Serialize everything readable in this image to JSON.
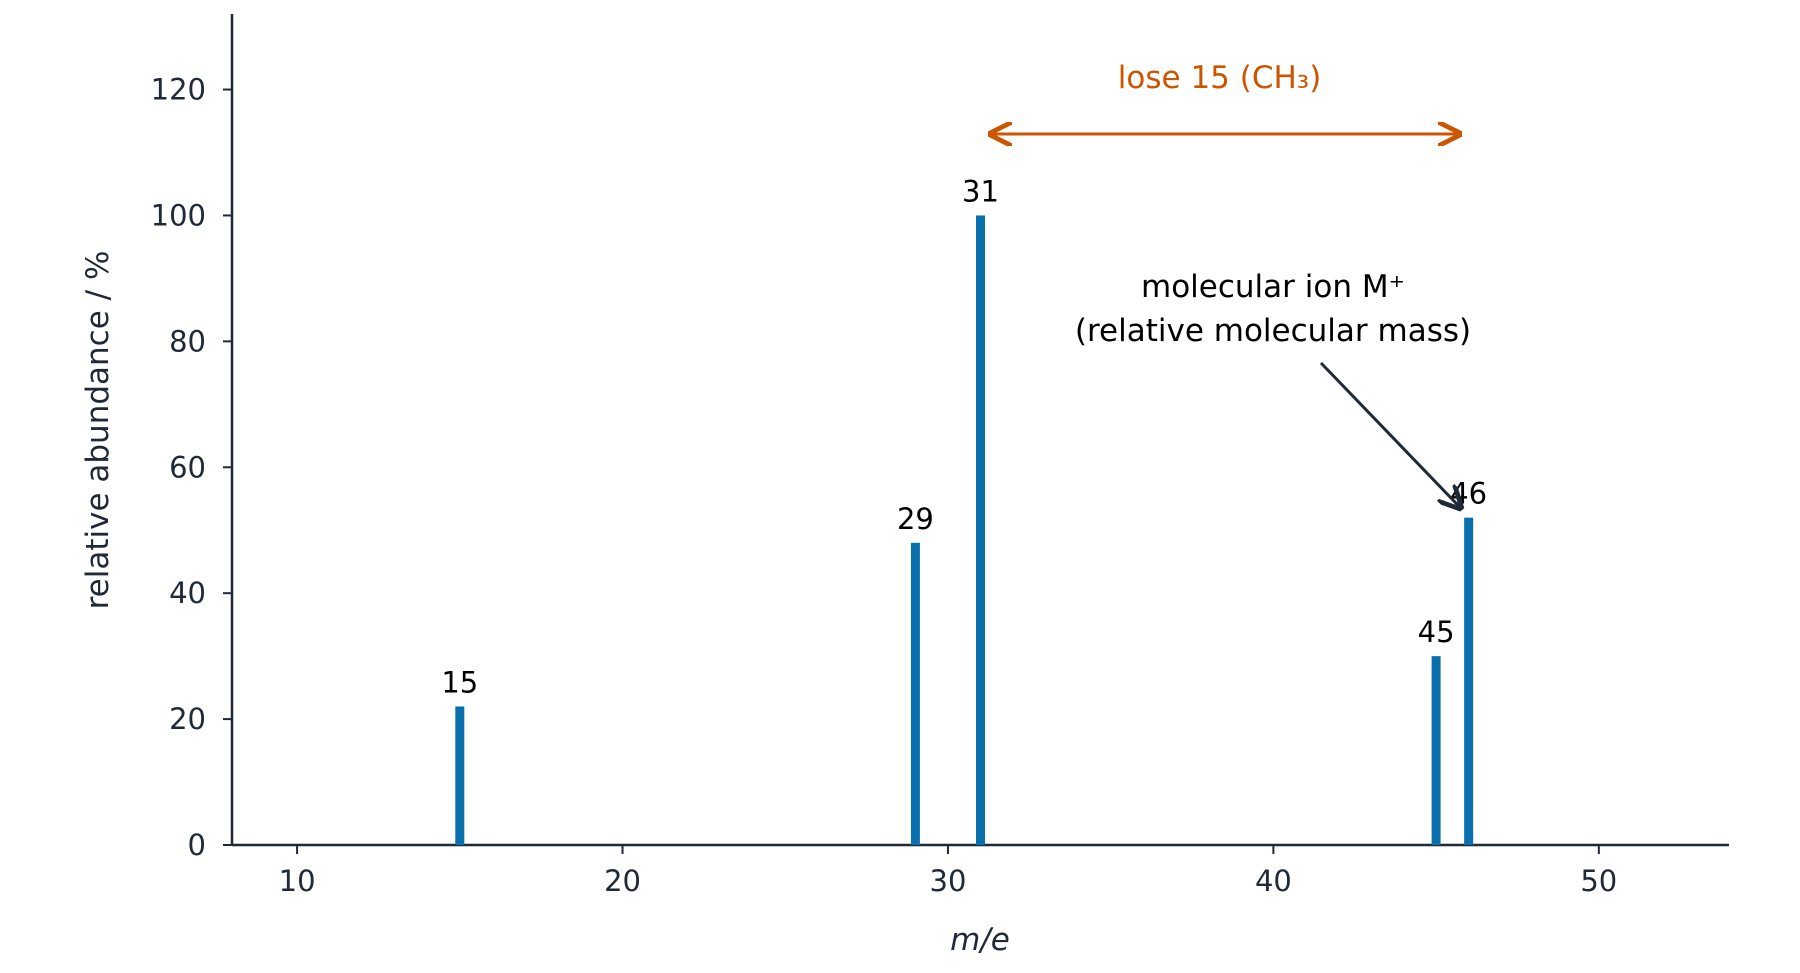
{
  "chart_data": {
    "type": "bar",
    "x": [
      15,
      29,
      31,
      45,
      46
    ],
    "values": [
      22,
      48,
      100,
      30,
      52
    ],
    "color": "#0a6fad",
    "xlim": [
      8,
      54
    ],
    "xticks": [
      10,
      20,
      30,
      40,
      50
    ],
    "ylim": [
      0,
      132
    ],
    "yticks": [
      0,
      20,
      40,
      60,
      80,
      100,
      120
    ],
    "x_label": "m/e",
    "y_label": "relative abundance / %",
    "annotations": [
      {
        "text": "lose 15 (CH₃)",
        "color": "#cc5500"
      },
      {
        "text": "molecular ion M⁺"
      },
      {
        "text": "(relative molecular mass)"
      }
    ]
  }
}
